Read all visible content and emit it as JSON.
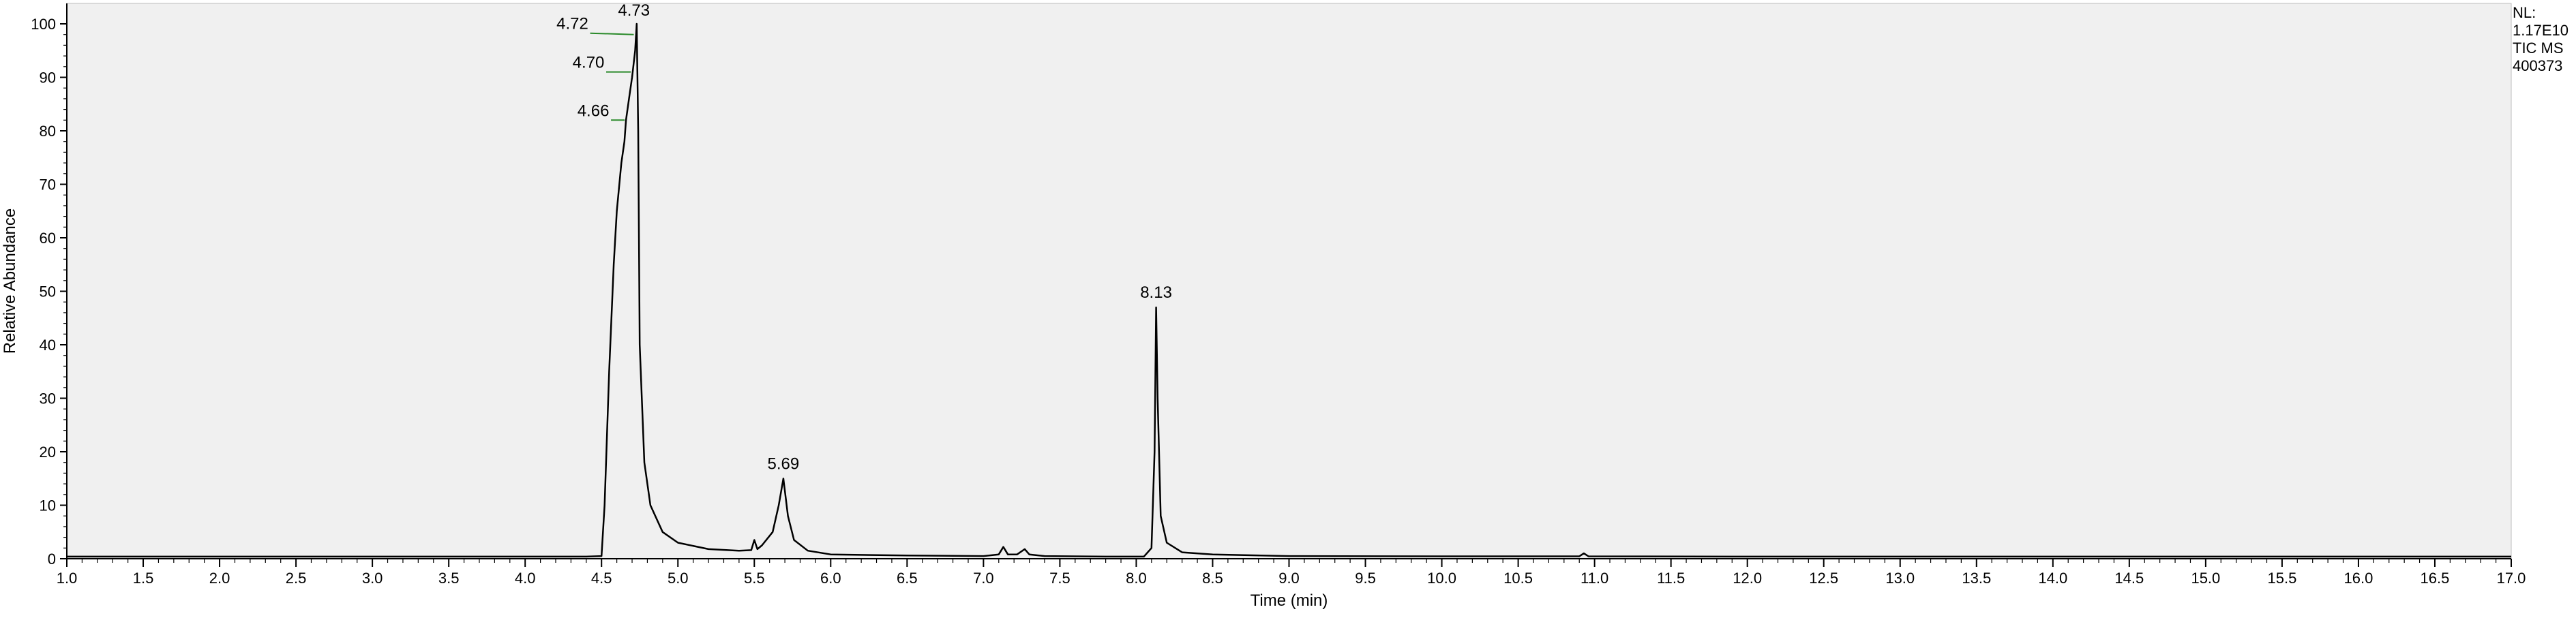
{
  "info": {
    "nl_label": "NL:",
    "nl_value": "1.17E10",
    "scan": "TIC  MS",
    "file": "400373"
  },
  "chart_data": {
    "type": "line",
    "xlabel": "Time (min)",
    "ylabel": "Relative Abundance",
    "xlim": [
      1.0,
      17.0
    ],
    "ylim": [
      0,
      100
    ],
    "xticks": [
      "1.0",
      "1.5",
      "2.0",
      "2.5",
      "3.0",
      "3.5",
      "4.0",
      "4.5",
      "5.0",
      "5.5",
      "6.0",
      "6.5",
      "7.0",
      "7.5",
      "8.0",
      "8.5",
      "9.0",
      "9.5",
      "10.0",
      "10.5",
      "11.0",
      "11.5",
      "12.0",
      "12.5",
      "13.0",
      "13.5",
      "14.0",
      "14.5",
      "15.0",
      "15.5",
      "16.0",
      "16.5",
      "17.0"
    ],
    "yticks": [
      "0",
      "10",
      "20",
      "30",
      "40",
      "50",
      "60",
      "70",
      "80",
      "90",
      "100"
    ],
    "background": "#f0f0f0",
    "line_color": "#000000",
    "leader_color": "#2a8a2a",
    "series": [
      {
        "x": [
          1.0,
          4.4,
          4.5,
          4.52,
          4.55,
          4.58,
          4.6,
          4.63,
          4.65,
          4.66,
          4.68,
          4.7,
          4.72,
          4.73,
          4.74,
          4.75,
          4.78,
          4.82,
          4.9,
          5.0,
          5.2,
          5.4,
          5.48,
          5.5,
          5.52,
          5.55,
          5.62,
          5.66,
          5.69,
          5.72,
          5.76,
          5.85,
          6.0,
          6.5,
          7.0,
          7.1,
          7.13,
          7.16,
          7.22,
          7.27,
          7.3,
          7.4,
          7.8,
          8.05,
          8.1,
          8.12,
          8.13,
          8.14,
          8.16,
          8.2,
          8.3,
          8.5,
          9.0,
          10.0,
          10.9,
          10.93,
          10.96,
          12.0,
          14.0,
          17.0
        ],
        "y": [
          0.4,
          0.4,
          0.5,
          10,
          35,
          55,
          65,
          74,
          78,
          82,
          86,
          90,
          95,
          100,
          80,
          40,
          18,
          10,
          5,
          3,
          1.8,
          1.5,
          1.6,
          3.5,
          1.8,
          2.5,
          5,
          10,
          15,
          8,
          3.5,
          1.5,
          0.8,
          0.6,
          0.5,
          0.8,
          2.2,
          0.8,
          0.8,
          1.8,
          0.8,
          0.5,
          0.4,
          0.4,
          2,
          20,
          47,
          30,
          8,
          3,
          1.2,
          0.8,
          0.5,
          0.45,
          0.45,
          1.0,
          0.45,
          0.4,
          0.4,
          0.4
        ]
      }
    ],
    "annotations": [
      {
        "text": "4.72",
        "x": 4.72,
        "y": 98
      },
      {
        "text": "4.73",
        "x": 4.73,
        "y": 100
      },
      {
        "text": "4.70",
        "x": 4.7,
        "y": 91
      },
      {
        "text": "4.66",
        "x": 4.66,
        "y": 82
      },
      {
        "text": "5.69",
        "x": 5.69,
        "y": 15
      },
      {
        "text": "8.13",
        "x": 8.13,
        "y": 47
      }
    ]
  }
}
